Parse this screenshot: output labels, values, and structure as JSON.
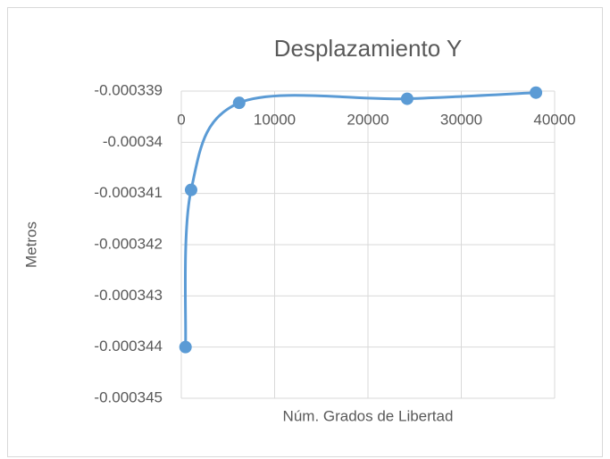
{
  "chart_data": {
    "type": "scatter",
    "title": "Desplazamiento Y",
    "xlabel": "Núm. Grados de Libertad",
    "ylabel": "Metros",
    "series": [
      {
        "name": "Desplazamiento Y",
        "color": "#5b9bd5",
        "x": [
          450,
          1050,
          6200,
          24200,
          38000
        ],
        "values": [
          -0.000344,
          -0.00034093,
          -0.00033923,
          -0.00033915,
          -0.00033903
        ]
      }
    ],
    "xlim": [
      0,
      40000
    ],
    "xticks": [
      0,
      10000,
      20000,
      30000,
      40000
    ],
    "ylim": [
      -0.000345,
      -0.000339
    ],
    "yticks": [
      -0.000339,
      -0.00034,
      -0.000341,
      -0.000342,
      -0.000343,
      -0.000344,
      -0.000345
    ],
    "grid": true,
    "smooth": true
  }
}
